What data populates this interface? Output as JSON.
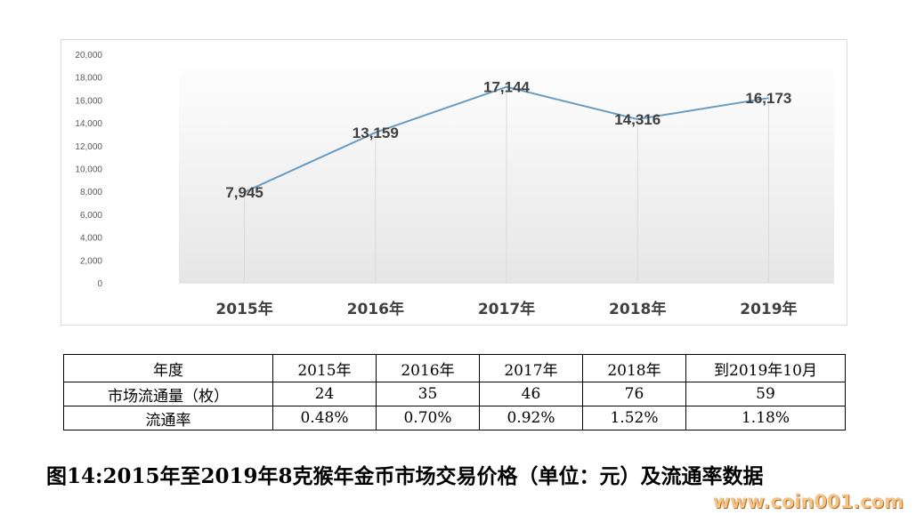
{
  "chart_data": {
    "type": "line",
    "categories": [
      "2015年",
      "2016年",
      "2017年",
      "2018年",
      "2019年"
    ],
    "values": [
      7945,
      13159,
      17144,
      14316,
      16173
    ],
    "data_labels": [
      "7,945",
      "13,159",
      "17,144",
      "14,316",
      "16,173"
    ],
    "y_ticks": [
      "0",
      "2,000",
      "4,000",
      "6,000",
      "8,000",
      "10,000",
      "12,000",
      "14,000",
      "16,000",
      "18,000",
      "20,000"
    ],
    "ylim": [
      0,
      20000
    ],
    "title": "",
    "xlabel": "",
    "ylabel": "",
    "grid": "vertical drop lines",
    "line_color": "#6a9bc3"
  },
  "table": {
    "header": [
      "年度",
      "2015年",
      "2016年",
      "2017年",
      "2018年",
      "到2019年10月"
    ],
    "rows": [
      [
        "市场流通量（枚）",
        "24",
        "35",
        "46",
        "76",
        "59"
      ],
      [
        "流通率",
        "0.48%",
        "0.70%",
        "0.92%",
        "1.52%",
        "1.18%"
      ]
    ]
  },
  "caption": "图14:2015年至2019年8克猴年金币市场交易价格（单位：元）及流通率数据",
  "watermark": "www.coin001.com"
}
